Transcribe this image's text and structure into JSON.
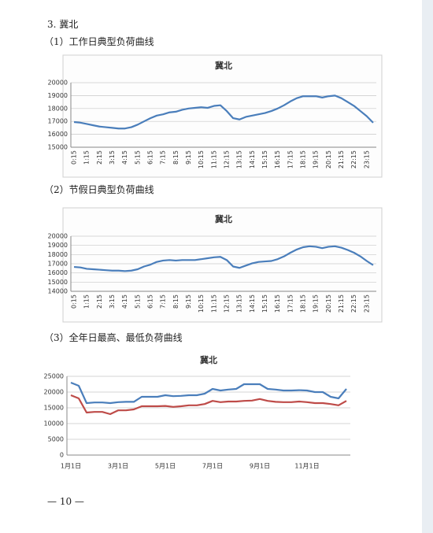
{
  "heading": "3. 冀北",
  "page_number": "— 10 —",
  "chart_data": [
    {
      "type": "line",
      "caption": "（1）工作日典型负荷曲线",
      "title": "冀北",
      "categories": [
        "0:15",
        null,
        "1:15",
        null,
        "2:15",
        null,
        "3:15",
        null,
        "4:15",
        null,
        "5:15",
        null,
        "6:15",
        null,
        "7:15",
        null,
        "8:15",
        null,
        "9:15",
        null,
        "10:15",
        null,
        "11:15",
        null,
        "12:15",
        null,
        "13:15",
        null,
        "14:15",
        null,
        "15:15",
        null,
        "16:15",
        null,
        "17:15",
        null,
        "18:15",
        null,
        "19:15",
        null,
        "20:15",
        null,
        "21:15",
        null,
        "22:15",
        null,
        "23:15",
        null
      ],
      "series": [
        {
          "color": "#4a7ebb",
          "values": [
            16950,
            16900,
            16800,
            16700,
            16600,
            16550,
            16500,
            16450,
            16450,
            16550,
            16750,
            17000,
            17250,
            17450,
            17550,
            17700,
            17750,
            17900,
            18000,
            18050,
            18100,
            18050,
            18200,
            18250,
            17800,
            17250,
            17150,
            17350,
            17450,
            17550,
            17650,
            17800,
            18000,
            18250,
            18550,
            18800,
            18950,
            18950,
            18950,
            18850,
            18950,
            19000,
            18800,
            18500,
            18200,
            17800,
            17400,
            16900
          ]
        }
      ],
      "ylim": [
        15000,
        20000
      ],
      "yticks": [
        15000,
        16000,
        17000,
        18000,
        19000,
        20000
      ],
      "grid": true
    },
    {
      "type": "line",
      "caption": "（2）节假日典型负荷曲线",
      "title": "冀北",
      "categories": [
        "0:15",
        null,
        "1:15",
        null,
        "2:15",
        null,
        "3:15",
        null,
        "4:15",
        null,
        "5:15",
        null,
        "6:15",
        null,
        "7:15",
        null,
        "8:15",
        null,
        "9:15",
        null,
        "10:15",
        null,
        "11:15",
        null,
        "12:15",
        null,
        "13:15",
        null,
        "14:15",
        null,
        "15:15",
        null,
        "16:15",
        null,
        "17:15",
        null,
        "18:15",
        null,
        "19:15",
        null,
        "20:15",
        null,
        "21:15",
        null,
        "22:15",
        null,
        "23:15",
        null
      ],
      "series": [
        {
          "color": "#4a7ebb",
          "values": [
            16650,
            16600,
            16450,
            16400,
            16350,
            16300,
            16250,
            16250,
            16200,
            16250,
            16400,
            16700,
            16900,
            17200,
            17350,
            17400,
            17350,
            17400,
            17400,
            17400,
            17500,
            17600,
            17700,
            17750,
            17400,
            16700,
            16550,
            16800,
            17050,
            17200,
            17250,
            17300,
            17500,
            17800,
            18200,
            18550,
            18800,
            18900,
            18850,
            18700,
            18850,
            18900,
            18750,
            18500,
            18200,
            17800,
            17300,
            16850
          ]
        }
      ],
      "ylim": [
        14000,
        20000
      ],
      "yticks": [
        14000,
        15000,
        16000,
        17000,
        18000,
        19000,
        20000
      ],
      "grid": true
    },
    {
      "type": "line",
      "caption": "（3）全年日最高、最低负荷曲线",
      "title": "冀北",
      "categories": [
        "1月1日",
        null,
        null,
        null,
        null,
        null,
        "3月1日",
        null,
        null,
        null,
        null,
        null,
        "5月1日",
        null,
        null,
        null,
        null,
        null,
        "7月1日",
        null,
        null,
        null,
        null,
        null,
        "9月1日",
        null,
        null,
        null,
        null,
        null,
        "11月1日",
        null,
        null,
        null,
        null,
        null
      ],
      "series": [
        {
          "color": "#4a7ebb",
          "values": [
            23000,
            22000,
            16500,
            16700,
            16700,
            16500,
            16800,
            16900,
            16900,
            18500,
            18500,
            18500,
            19000,
            18700,
            18800,
            19000,
            19000,
            19500,
            21000,
            20500,
            20800,
            21000,
            22500,
            22500,
            22500,
            21000,
            20800,
            20500,
            20500,
            20600,
            20500,
            20000,
            20000,
            18500,
            18000,
            21000
          ]
        },
        {
          "color": "#be4b48",
          "values": [
            19000,
            18000,
            13500,
            13700,
            13700,
            13000,
            14200,
            14200,
            14500,
            15500,
            15500,
            15500,
            15600,
            15300,
            15500,
            15800,
            15800,
            16200,
            17200,
            16800,
            17000,
            17000,
            17200,
            17300,
            17800,
            17200,
            16900,
            16800,
            16800,
            17000,
            16800,
            16500,
            16500,
            16200,
            15800,
            17200
          ]
        }
      ],
      "ylim": [
        0,
        25000
      ],
      "yticks": [
        0,
        5000,
        10000,
        15000,
        20000,
        25000
      ],
      "grid": true
    }
  ]
}
